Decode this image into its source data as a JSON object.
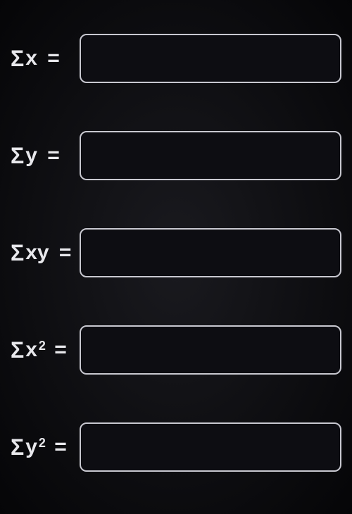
{
  "fields": [
    {
      "label_prefix": "Σ",
      "label_var": "x",
      "label_sup": "",
      "equals": "=",
      "value": ""
    },
    {
      "label_prefix": "Σ",
      "label_var": "y",
      "label_sup": "",
      "equals": "=",
      "value": ""
    },
    {
      "label_prefix": "Σ",
      "label_var": "xy",
      "label_sup": "",
      "equals": "=",
      "value": ""
    },
    {
      "label_prefix": "Σ",
      "label_var": "x",
      "label_sup": "2",
      "equals": "=",
      "value": ""
    },
    {
      "label_prefix": "Σ",
      "label_var": "y",
      "label_sup": "2",
      "equals": "=",
      "value": ""
    }
  ],
  "style": {
    "background_color": "#0a0a0d",
    "text_color": "#e8e8ec",
    "input_border_color": "#c8c8d0",
    "input_background": "#0d0d12",
    "label_fontsize": 30,
    "input_height": 70,
    "border_radius": 10
  }
}
